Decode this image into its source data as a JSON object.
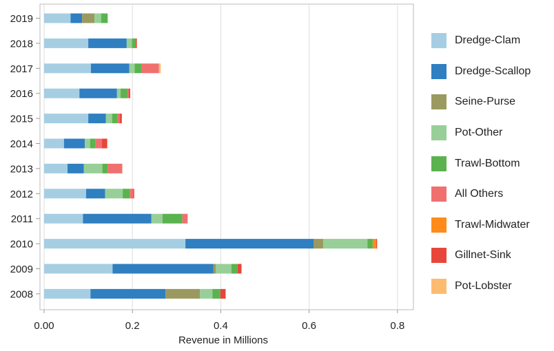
{
  "chart_data": {
    "type": "bar",
    "orientation": "horizontal",
    "stacked": true,
    "title": "",
    "xlabel": "Revenue in Millions",
    "ylabel": "",
    "xlim": [
      0,
      0.82
    ],
    "xticks": [
      "0.00",
      "0.2",
      "0.4",
      "0.6",
      "0.8"
    ],
    "xtick_values": [
      0,
      0.2,
      0.4,
      0.6,
      0.8
    ],
    "grid": true,
    "legend_position": "right",
    "categories": [
      "2019",
      "2018",
      "2017",
      "2016",
      "2015",
      "2014",
      "2013",
      "2012",
      "2011",
      "2010",
      "2009",
      "2008"
    ],
    "series": [
      {
        "name": "Dredge-Clam",
        "color": "#a6cee3",
        "values": [
          0.06,
          0.1,
          0.106,
          0.08,
          0.1,
          0.045,
          0.053,
          0.095,
          0.088,
          0.32,
          0.155,
          0.105
        ]
      },
      {
        "name": "Dredge-Scallop",
        "color": "#2f7fc1",
        "values": [
          0.026,
          0.087,
          0.087,
          0.085,
          0.04,
          0.047,
          0.037,
          0.043,
          0.155,
          0.29,
          0.228,
          0.17
        ]
      },
      {
        "name": "Seine-Purse",
        "color": "#9a9a60",
        "values": [
          0.028,
          0,
          0,
          0,
          0,
          0,
          0,
          0,
          0,
          0.022,
          0.006,
          0.078
        ]
      },
      {
        "name": "Pot-Other",
        "color": "#98cf98",
        "values": [
          0.015,
          0.012,
          0.012,
          0.008,
          0.014,
          0.012,
          0.042,
          0.04,
          0.025,
          0.1,
          0.035,
          0.028
        ]
      },
      {
        "name": "Trawl-Bottom",
        "color": "#5ab34f",
        "values": [
          0.015,
          0.008,
          0.015,
          0.015,
          0.012,
          0.012,
          0.012,
          0.016,
          0.045,
          0.012,
          0.014,
          0.018
        ]
      },
      {
        "name": "All Others",
        "color": "#f07070",
        "values": [
          0,
          0,
          0.04,
          0.004,
          0.005,
          0.015,
          0.033,
          0.008,
          0.012,
          0,
          0,
          0
        ]
      },
      {
        "name": "Trawl-Midwater",
        "color": "#ff8c1a",
        "values": [
          0,
          0,
          0,
          0,
          0,
          0,
          0,
          0,
          0,
          0.008,
          0,
          0
        ]
      },
      {
        "name": "Gillnet-Sink",
        "color": "#e8463a",
        "values": [
          0,
          0.003,
          0,
          0.003,
          0.005,
          0.012,
          0,
          0.002,
          0,
          0.002,
          0.009,
          0.012
        ]
      },
      {
        "name": "Pot-Lobster",
        "color": "#fdbb70",
        "values": [
          0,
          0,
          0.004,
          0,
          0,
          0,
          0,
          0,
          0,
          0,
          0,
          0
        ]
      }
    ]
  }
}
